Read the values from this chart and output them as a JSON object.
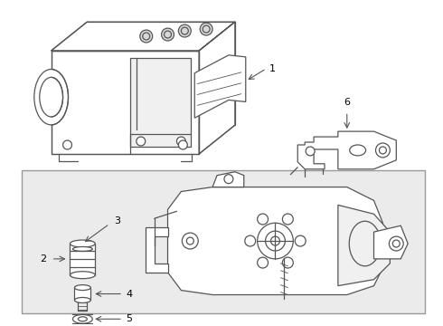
{
  "bg_color": "#ffffff",
  "line_color": "#555555",
  "label_color": "#000000",
  "fig_width": 4.9,
  "fig_height": 3.6,
  "dpi": 100,
  "box_bg": "#e8e8e8",
  "box_edge": "#888888"
}
